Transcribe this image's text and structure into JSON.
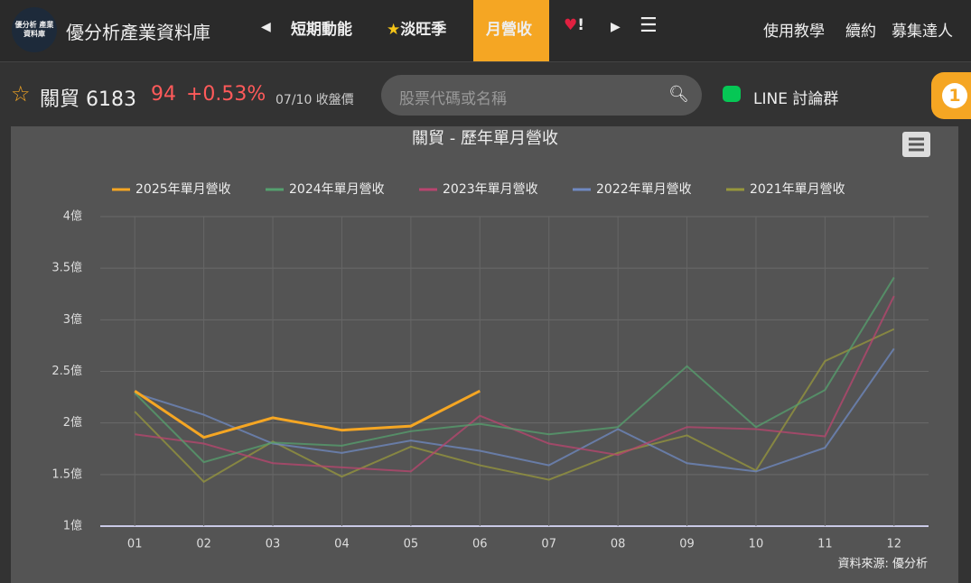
{
  "header": {
    "logo_text": "優分析 產業資料庫",
    "site_name": "優分析產業資料庫",
    "nav": [
      "短期動能",
      "淡旺季",
      "月營收",
      "!"
    ],
    "links": [
      "使用教學",
      "續約",
      "募集達人"
    ]
  },
  "stock_bar": {
    "name": "關貿 6183",
    "price": "94",
    "change": "+0.53%",
    "date": "07/10 收盤價",
    "search_placeholder": "股票代碼或名稱",
    "line_group": "LINE 討論群",
    "badge": "1"
  },
  "chart_data": {
    "type": "line",
    "title": "關貿 - 歷年單月營收",
    "source": "資料來源: 優分析",
    "categories": [
      "01",
      "02",
      "03",
      "04",
      "05",
      "06",
      "07",
      "08",
      "09",
      "10",
      "11",
      "12"
    ],
    "ylim": [
      1,
      4
    ],
    "yticks": [
      {
        "value": 1,
        "label": "1億"
      },
      {
        "value": 1.5,
        "label": "1.5億"
      },
      {
        "value": 2,
        "label": "2億"
      },
      {
        "value": 2.5,
        "label": "2.5億"
      },
      {
        "value": 3,
        "label": "3億"
      },
      {
        "value": 3.5,
        "label": "3.5億"
      },
      {
        "value": 4,
        "label": "4億"
      }
    ],
    "grid": true,
    "series": [
      {
        "name": "2025年單月營收",
        "color": "#f5a623",
        "values": [
          2.31,
          1.86,
          2.05,
          1.93,
          1.97,
          2.31,
          null,
          null,
          null,
          null,
          null,
          null
        ]
      },
      {
        "name": "2024年單月營收",
        "color": "#55a06e",
        "values": [
          2.29,
          1.62,
          1.81,
          1.78,
          1.92,
          1.99,
          1.89,
          1.96,
          2.55,
          1.96,
          2.32,
          3.41
        ]
      },
      {
        "name": "2023年單月營收",
        "color": "#b9456f",
        "values": [
          1.89,
          1.8,
          1.61,
          1.57,
          1.53,
          2.07,
          1.8,
          1.69,
          1.96,
          1.94,
          1.87,
          3.23
        ]
      },
      {
        "name": "2022年單月營收",
        "color": "#6f89c2",
        "values": [
          2.29,
          2.08,
          1.8,
          1.71,
          1.83,
          1.73,
          1.59,
          1.94,
          1.61,
          1.53,
          1.76,
          2.72
        ]
      },
      {
        "name": "2021年單月營收",
        "color": "#97973c",
        "values": [
          2.11,
          1.43,
          1.82,
          1.48,
          1.77,
          1.59,
          1.45,
          1.71,
          1.88,
          1.54,
          2.6,
          2.91
        ]
      }
    ]
  }
}
